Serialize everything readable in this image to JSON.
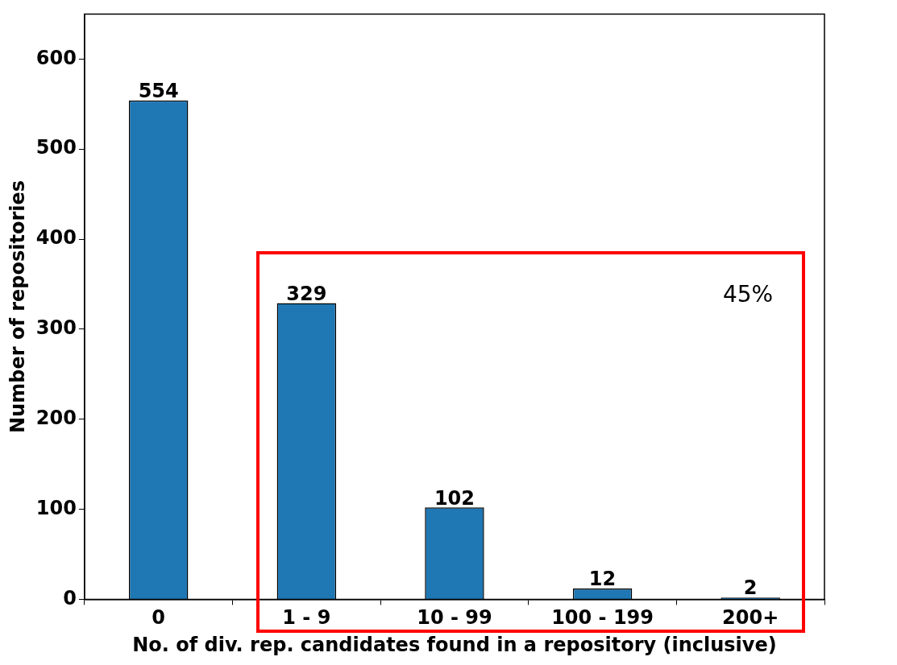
{
  "chart_data": {
    "type": "bar",
    "xlabel": "No. of div. rep. candidates found in a repository (inclusive)",
    "ylabel": "Number of repositories",
    "categories": [
      "0",
      "1 - 9",
      "10 - 99",
      "100 - 199",
      "200+"
    ],
    "values": [
      554,
      329,
      102,
      12,
      2
    ],
    "color": "#1f77b4",
    "ylim": [
      0,
      650
    ],
    "yticks": [
      0,
      100,
      200,
      300,
      400,
      500,
      600
    ],
    "grid": false,
    "legend": false,
    "data_labels": true,
    "annotations": [
      "45%"
    ]
  }
}
